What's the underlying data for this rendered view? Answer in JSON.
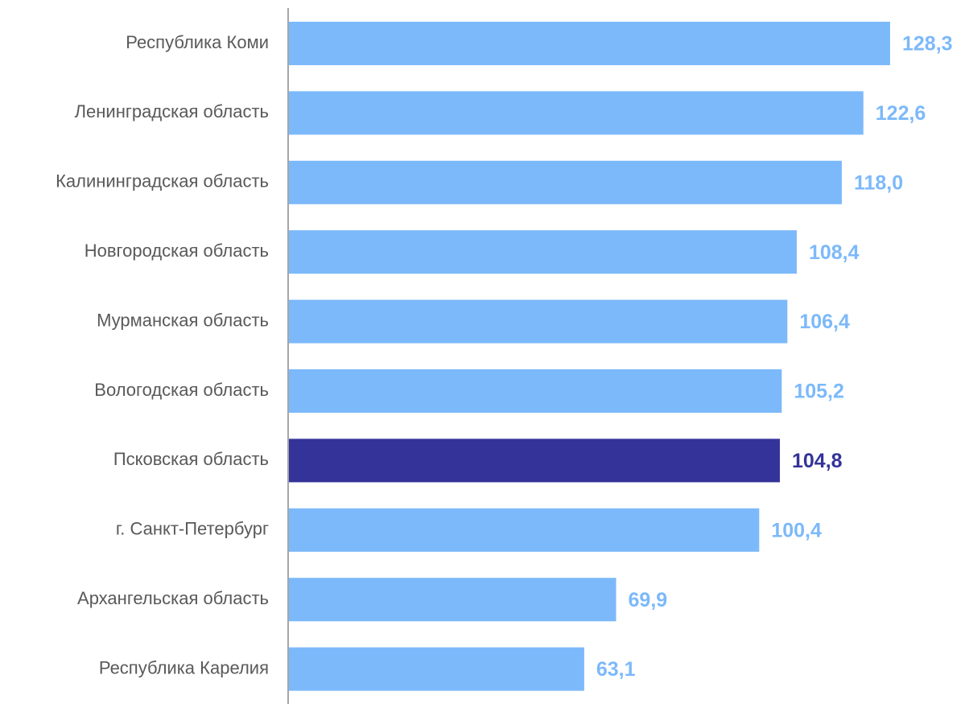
{
  "chart_data": {
    "type": "bar",
    "orientation": "horizontal",
    "categories": [
      "Республика Коми",
      "Ленинградская область",
      "Калининградская область",
      "Новгородская область",
      "Мурманская область",
      "Вологодская область",
      "Псковская область",
      "г. Санкт-Петербург",
      "Архангельская область",
      "Республика Карелия"
    ],
    "values": [
      128.3,
      122.6,
      118.0,
      108.4,
      106.4,
      105.2,
      104.8,
      100.4,
      69.9,
      63.1
    ],
    "value_labels": [
      "128,3",
      "122,6",
      "118,0",
      "108,4",
      "106,4",
      "105,2",
      "104,8",
      "100,4",
      "69,9",
      "63,1"
    ],
    "highlighted_category": "Псковская область",
    "xlim": [
      0,
      128.3
    ],
    "grid": false,
    "legend": "none",
    "colors": {
      "bar": "#7cb9fa",
      "bar_highlight": "#333399",
      "value_label": "#7cb9fa",
      "value_label_highlight": "#333399",
      "category_label": "#595959",
      "axis": "#a6a6a6"
    }
  }
}
